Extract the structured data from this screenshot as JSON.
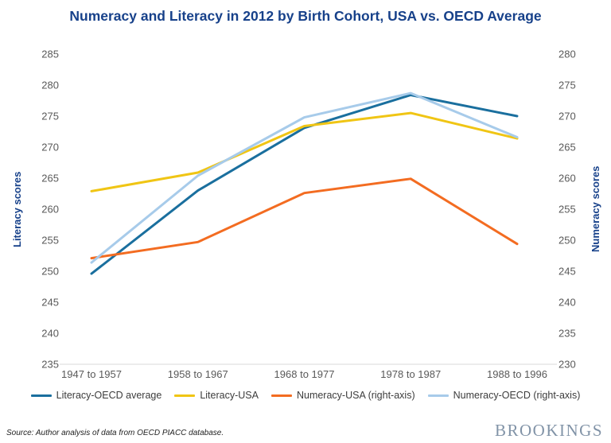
{
  "title": "Numeracy and Literacy in 2012 by Birth Cohort, USA vs. OECD Average",
  "footer": {
    "source": "Source: Author analysis of data from OECD PIACC database.",
    "brand": "BROOKINGS"
  },
  "chart_data": {
    "type": "line",
    "title": "Numeracy and Literacy in 2012 by Birth Cohort, USA vs. OECD Average",
    "categories": [
      "1947 to 1957",
      "1958 to 1967",
      "1968 to 1977",
      "1978 to 1987",
      "1988 to 1996"
    ],
    "left_axis": {
      "label": "Literacy scores",
      "min": 235,
      "max": 285,
      "step": 5
    },
    "right_axis": {
      "label": "Numeracy scores",
      "min": 230,
      "max": 280,
      "step": 5
    },
    "grid": false,
    "legend_position": "bottom",
    "title_color": "#17418a",
    "tick_color": "#595959",
    "series": [
      {
        "name": "Literacy-OECD average",
        "axis": "left",
        "color": "#1a6f9e",
        "values": [
          249.6,
          263.0,
          273.1,
          278.4,
          275.0
        ]
      },
      {
        "name": "Literacy-USA",
        "axis": "left",
        "color": "#f0c514",
        "values": [
          262.9,
          265.9,
          273.4,
          275.5,
          271.4
        ]
      },
      {
        "name": "Numeracy-USA (right-axis)",
        "axis": "right",
        "color": "#f36c21",
        "values": [
          247.1,
          249.7,
          257.6,
          259.9,
          249.4
        ]
      },
      {
        "name": "Numeracy-OECD (right-axis)",
        "axis": "right",
        "color": "#a7cbea",
        "values": [
          246.4,
          260.4,
          269.8,
          273.7,
          266.6
        ]
      }
    ]
  }
}
